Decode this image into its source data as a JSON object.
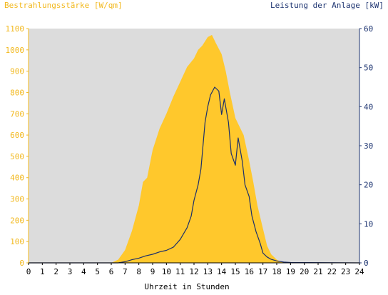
{
  "colors": {
    "irradiance": "#ffc82c",
    "power": "#1c2f6b",
    "plot_background": "#dcdcdc",
    "left_axis": "#f2b81d",
    "right_axis": "#1c3370"
  },
  "chart_data": {
    "type": "area",
    "title": "",
    "y_left_label": "Bestrahlungsstärke [W/qm]",
    "y_right_label": "Leistung der Anlage [kW]",
    "xlabel": "Uhrzeit in Stunden",
    "xlim": [
      0,
      24
    ],
    "ylim_left": [
      0,
      1100
    ],
    "ylim_right": [
      0,
      60
    ],
    "grid": false,
    "x_ticks": [
      "0",
      "1",
      "2",
      "3",
      "4",
      "5",
      "6",
      "7",
      "8",
      "9",
      "10",
      "11",
      "12",
      "13",
      "14",
      "15",
      "16",
      "17",
      "18",
      "19",
      "20",
      "21",
      "22",
      "23",
      "24"
    ],
    "y_left_ticks": [
      "0",
      "100",
      "200",
      "300",
      "400",
      "500",
      "600",
      "700",
      "800",
      "900",
      "1000",
      "1100"
    ],
    "y_right_ticks": [
      "0",
      "10",
      "20",
      "30",
      "40",
      "50",
      "60"
    ],
    "series": [
      {
        "name": "Bestrahlungsstärke [W/qm]",
        "type": "area",
        "axis": "left",
        "x": [
          0,
          6.0,
          6.5,
          7.0,
          7.5,
          8.0,
          8.3,
          8.6,
          9.0,
          9.5,
          10.0,
          10.5,
          11.0,
          11.5,
          12.0,
          12.3,
          12.6,
          13.0,
          13.3,
          13.6,
          14.0,
          14.3,
          14.6,
          15.0,
          15.3,
          15.6,
          16.0,
          16.3,
          16.6,
          17.0,
          17.3,
          17.6,
          18.0,
          18.3,
          18.6,
          19.0,
          24
        ],
        "y": [
          0,
          0,
          15,
          60,
          150,
          270,
          380,
          400,
          530,
          630,
          700,
          780,
          850,
          920,
          960,
          1000,
          1020,
          1060,
          1070,
          1030,
          980,
          900,
          800,
          680,
          640,
          600,
          480,
          380,
          270,
          160,
          80,
          40,
          15,
          5,
          2,
          0,
          0
        ]
      },
      {
        "name": "Leistung der Anlage [kW]",
        "type": "line",
        "axis": "right",
        "x": [
          0,
          6.5,
          7.0,
          7.5,
          8.0,
          8.5,
          9.0,
          9.5,
          10.0,
          10.5,
          11.0,
          11.5,
          11.8,
          12.0,
          12.3,
          12.5,
          12.8,
          13.0,
          13.2,
          13.5,
          13.8,
          14.0,
          14.2,
          14.5,
          14.7,
          15.0,
          15.2,
          15.5,
          15.7,
          16.0,
          16.2,
          16.5,
          16.8,
          17.0,
          17.3,
          17.6,
          18.0,
          18.5,
          19.0,
          24
        ],
        "y": [
          0,
          0,
          0.3,
          0.8,
          1.2,
          1.8,
          2.2,
          2.8,
          3.2,
          4.0,
          6.0,
          9.0,
          12.0,
          16.0,
          20.0,
          24.0,
          36.0,
          40.0,
          43.0,
          45.0,
          44.0,
          38.0,
          42.0,
          36.0,
          28.0,
          25.0,
          32.0,
          26.0,
          20.0,
          17.0,
          12.0,
          8.0,
          5.0,
          2.5,
          1.5,
          0.9,
          0.5,
          0.2,
          0.1,
          0
        ]
      }
    ]
  }
}
